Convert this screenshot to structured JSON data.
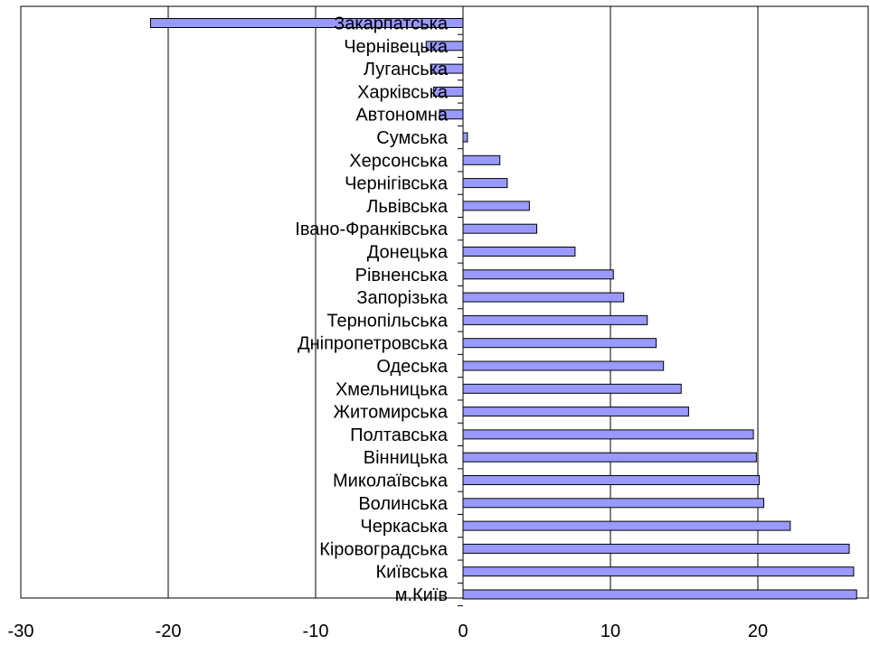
{
  "chart_data": {
    "type": "bar",
    "orientation": "horizontal",
    "title": "",
    "xlabel": "",
    "ylabel": "",
    "xlim": [
      -30,
      27
    ],
    "xticks": [
      "-30",
      "-20",
      "-10",
      "0",
      "10",
      "20"
    ],
    "grid": "vertical",
    "legend": "none",
    "colors": {
      "bar_fill": "#9999ff",
      "bar_stroke": "#000000",
      "gridline": "#000000"
    },
    "categories": [
      "Закарпатська",
      "Чернівецька",
      "Луганська",
      "Харківська",
      "Автономна",
      "Сумська",
      "Херсонська",
      "Чернігівська",
      "Львівська",
      "Івано-Франківська",
      "Донецька",
      "Рівненська",
      "Запорізька",
      "Тернопільська",
      "Дніпропетровська",
      "Одеська",
      "Хмельницька",
      "Житомирська",
      "Полтавська",
      "Вінницька",
      "Миколаївська",
      "Волинська",
      "Черкаська",
      "Кіровоградська",
      "Київська",
      "м.Київ"
    ],
    "values": [
      -21.2,
      -2.5,
      -2.2,
      -2.0,
      -1.6,
      0.3,
      2.5,
      3.0,
      4.5,
      5.0,
      7.6,
      10.2,
      10.9,
      12.5,
      13.1,
      13.6,
      14.8,
      15.3,
      19.7,
      19.9,
      20.1,
      20.4,
      22.2,
      26.2,
      26.5,
      26.7
    ]
  }
}
